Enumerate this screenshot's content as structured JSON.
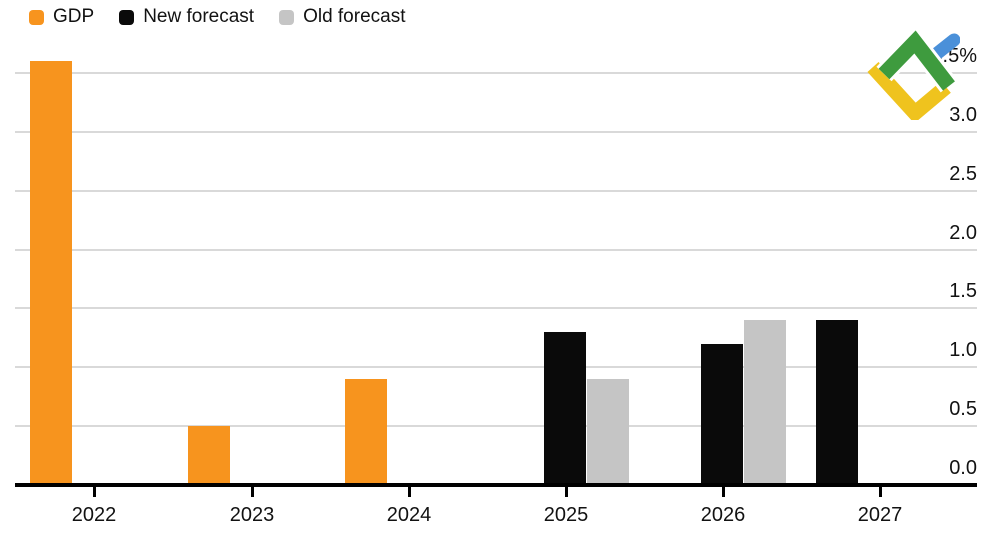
{
  "legend": {
    "items": [
      {
        "id": "gdp",
        "label": "GDP",
        "color": "#F7941E"
      },
      {
        "id": "new-forecast",
        "label": "New forecast",
        "color": "#0A0A0A"
      },
      {
        "id": "old-forecast",
        "label": "Old forecast",
        "color": "#C5C5C5"
      }
    ]
  },
  "logo": {
    "name": "litefinance-logo",
    "green": "#3E9B3E",
    "yellow": "#EFC31E",
    "blue": "#4A90D9"
  },
  "chart_data": {
    "type": "bar",
    "title": "",
    "categories": [
      "2022",
      "2023",
      "2024",
      "2025",
      "2026",
      "2027"
    ],
    "series": [
      {
        "name": "GDP",
        "color": "#F7941E",
        "values": [
          3.6,
          0.5,
          0.9,
          null,
          null,
          null
        ]
      },
      {
        "name": "New forecast",
        "color": "#0A0A0A",
        "values": [
          null,
          null,
          null,
          1.3,
          1.2,
          1.4
        ]
      },
      {
        "name": "Old forecast",
        "color": "#C5C5C5",
        "values": [
          null,
          null,
          null,
          0.9,
          1.4,
          null
        ]
      }
    ],
    "xlabel": "",
    "ylabel": "%",
    "ylim": [
      0,
      3.6
    ],
    "yticks": [
      {
        "value": 0.0,
        "label": "0.0"
      },
      {
        "value": 0.5,
        "label": "0.5"
      },
      {
        "value": 1.0,
        "label": "1.0"
      },
      {
        "value": 1.5,
        "label": "1.5"
      },
      {
        "value": 2.0,
        "label": "2.0"
      },
      {
        "value": 2.5,
        "label": "2.5"
      },
      {
        "value": 3.0,
        "label": "3.0"
      },
      {
        "value": 3.5,
        "label": "3.5%"
      }
    ],
    "grid": "horizontal",
    "y_axis_position": "right",
    "legend_position": "top-left"
  }
}
